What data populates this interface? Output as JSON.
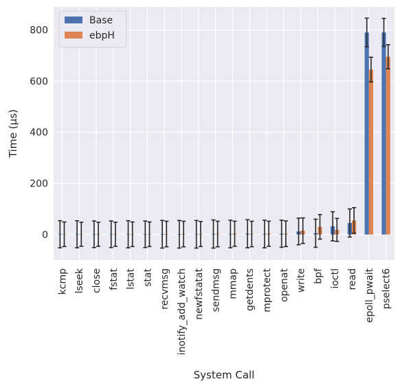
{
  "chart_data": {
    "type": "bar",
    "xlabel": "System Call",
    "ylabel": "Time (μs)",
    "ylim": [
      -100,
      890
    ],
    "yticks": [
      0,
      200,
      400,
      600,
      800
    ],
    "grid": true,
    "legend_placement": "top-left",
    "categories": [
      "kcmp",
      "lseek",
      "close",
      "fstat",
      "lstat",
      "stat",
      "recvmsg",
      "inotify_add_watch",
      "newfstatat",
      "sendmsg",
      "mmap",
      "getdents",
      "mprotect",
      "openat",
      "write",
      "bpf",
      "ioctl",
      "read",
      "epoll_pwait",
      "pselect6"
    ],
    "series": [
      {
        "name": "Base",
        "color": "#4c72b0",
        "values": [
          1,
          1,
          1,
          1,
          1,
          1,
          1,
          1,
          1,
          2,
          2,
          3,
          2,
          3,
          12,
          5,
          32,
          45,
          790,
          790
        ],
        "errors": [
          53,
          53,
          52,
          52,
          53,
          52,
          54,
          54,
          54,
          55,
          54,
          55,
          54,
          53,
          52,
          55,
          57,
          55,
          56,
          55
        ]
      },
      {
        "name": "ebpH",
        "color": "#dd8452",
        "values": [
          1,
          1,
          1,
          1,
          1,
          1,
          2,
          2,
          2,
          2,
          3,
          2,
          3,
          3,
          15,
          30,
          18,
          55,
          645,
          695
        ],
        "errors": [
          48,
          47,
          47,
          47,
          48,
          48,
          50,
          50,
          49,
          50,
          49,
          50,
          49,
          50,
          50,
          48,
          45,
          50,
          48,
          47
        ]
      }
    ]
  }
}
